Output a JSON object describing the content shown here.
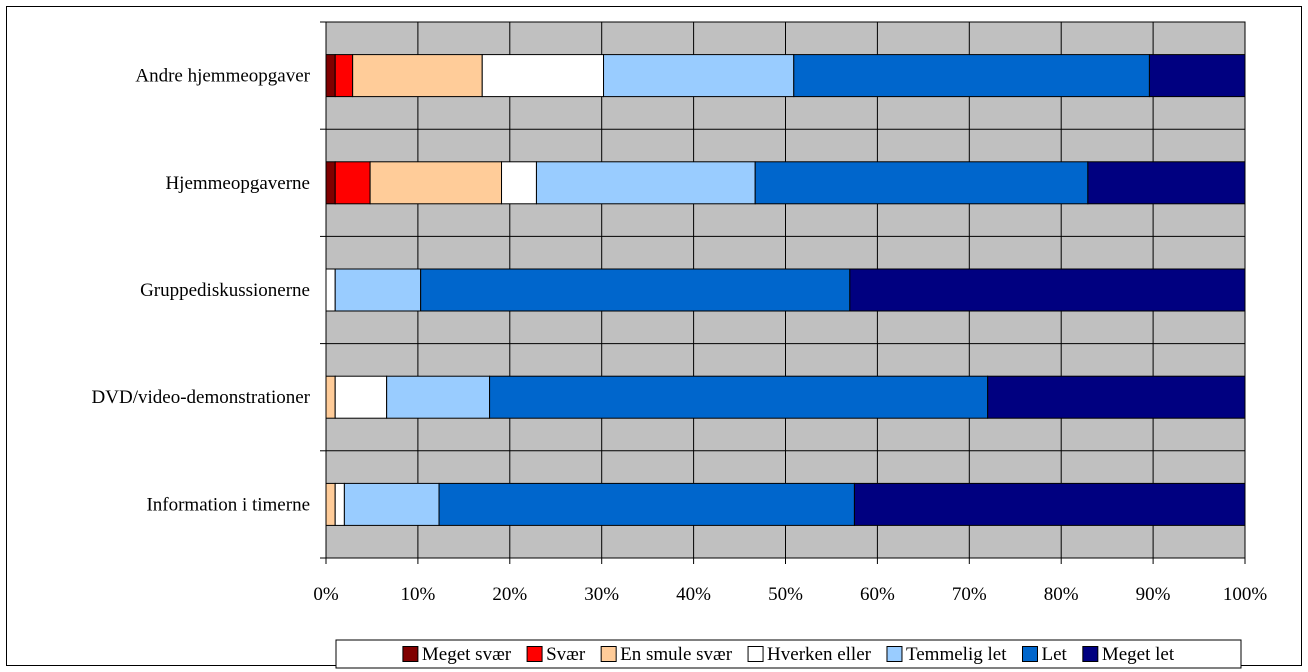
{
  "chart_data": {
    "type": "bar",
    "orientation": "horizontal",
    "stacked": "percent",
    "categories": [
      "Andre hjemmeopgaver",
      "Hjemmeopgaverne",
      "Gruppediskussionerne",
      "DVD/video-demonstrationer",
      "Information i timerne"
    ],
    "series": [
      {
        "name": "Meget svær",
        "color": "#800000",
        "values": [
          1.0,
          1.0,
          0.0,
          0.0,
          0.0
        ]
      },
      {
        "name": "Svær",
        "color": "#ff0000",
        "values": [
          1.9,
          3.8,
          0.0,
          0.0,
          0.0
        ]
      },
      {
        "name": "En smule svær",
        "color": "#ffcc99",
        "values": [
          14.1,
          14.3,
          0.0,
          1.0,
          1.0
        ]
      },
      {
        "name": "Hverken eller",
        "color": "#ffffff",
        "values": [
          13.2,
          3.8,
          1.0,
          5.6,
          1.0
        ]
      },
      {
        "name": "Temmelig let",
        "color": "#99ccff",
        "values": [
          20.7,
          23.8,
          9.3,
          11.2,
          10.3
        ]
      },
      {
        "name": "Let",
        "color": "#0066cc",
        "values": [
          38.7,
          36.2,
          46.7,
          54.2,
          45.2
        ]
      },
      {
        "name": "Meget let",
        "color": "#000080",
        "values": [
          10.4,
          17.1,
          43.0,
          28.0,
          42.5
        ]
      }
    ],
    "xlim": [
      0,
      100
    ],
    "x_ticks": [
      "0%",
      "10%",
      "20%",
      "30%",
      "40%",
      "50%",
      "60%",
      "70%",
      "80%",
      "90%",
      "100%"
    ],
    "xlabel": "",
    "ylabel": "",
    "title": "",
    "grid": true,
    "plot_background": "#c0c0c0",
    "legend_position": "bottom"
  }
}
